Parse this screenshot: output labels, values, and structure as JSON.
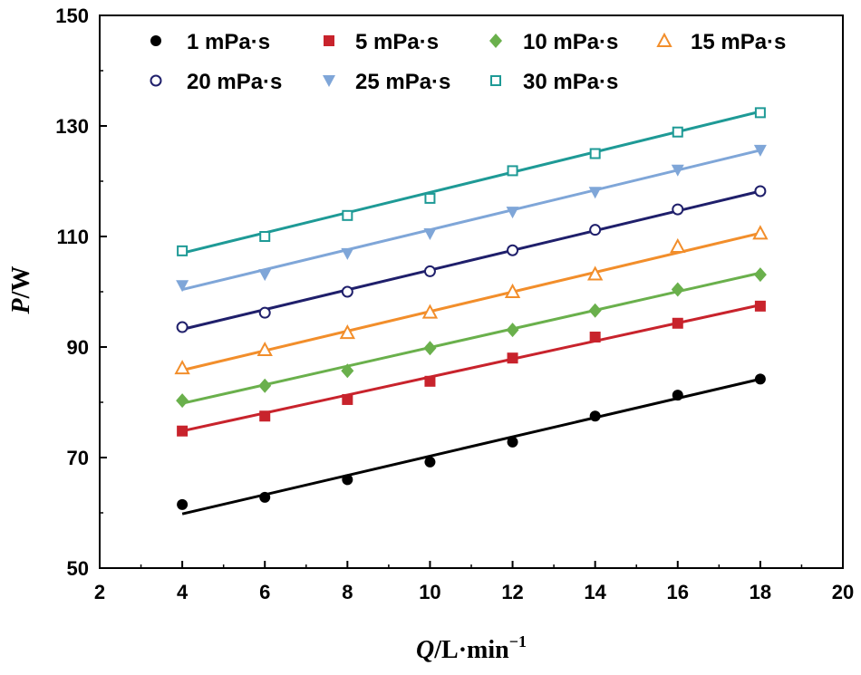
{
  "chart_data": {
    "type": "scatter",
    "title": "",
    "xlabel": {
      "var": "Q",
      "unit": "/L·min",
      "sup": "−1"
    },
    "ylabel": {
      "var": "P",
      "unit": "/W"
    },
    "xlim": [
      2,
      20
    ],
    "ylim": [
      50,
      150
    ],
    "xticks": [
      2,
      4,
      6,
      8,
      10,
      12,
      14,
      16,
      18,
      20
    ],
    "yticks": [
      50,
      70,
      90,
      110,
      130,
      150
    ],
    "x": [
      4,
      6,
      8,
      10,
      12,
      14,
      16,
      18
    ],
    "legend_position": "top",
    "series": [
      {
        "name": "1 mPa·s",
        "marker": "circle-filled",
        "color": "#000000",
        "values": [
          61.5,
          62.8,
          66.0,
          69.2,
          72.8,
          77.5,
          81.3,
          84.2
        ],
        "fit": [
          59.8,
          84.2
        ]
      },
      {
        "name": "5 mPa·s",
        "marker": "square-filled",
        "color": "#c8232c",
        "values": [
          74.8,
          77.5,
          80.5,
          83.8,
          88.0,
          91.8,
          94.3,
          97.4
        ],
        "fit": [
          74.8,
          97.6
        ]
      },
      {
        "name": "10 mPa·s",
        "marker": "diamond-filled",
        "color": "#6ab04c",
        "values": [
          80.3,
          83.0,
          85.7,
          89.8,
          93.1,
          96.6,
          100.4,
          103.1
        ],
        "fit": [
          79.8,
          103.4
        ]
      },
      {
        "name": "15 mPa·s",
        "marker": "triangle-up-open",
        "color": "#f28e2b",
        "values": [
          86.2,
          89.5,
          92.6,
          96.3,
          100.0,
          103.2,
          108.2,
          110.6
        ],
        "fit": [
          85.8,
          110.6
        ]
      },
      {
        "name": "20 mPa·s",
        "marker": "circle-open",
        "color": "#1f1f6b",
        "values": [
          93.6,
          96.2,
          100.0,
          103.7,
          107.5,
          111.2,
          114.9,
          118.2
        ],
        "fit": [
          93.2,
          118.2
        ]
      },
      {
        "name": "25 mPa·s",
        "marker": "triangle-down-filled",
        "color": "#7fa6d8",
        "values": [
          101.1,
          103.1,
          106.9,
          110.5,
          114.4,
          118.0,
          122.0,
          125.6
        ],
        "fit": [
          100.4,
          125.6
        ]
      },
      {
        "name": "30 mPa·s",
        "marker": "square-open",
        "color": "#1e9a96",
        "values": [
          107.4,
          110.0,
          113.8,
          116.9,
          121.9,
          125.0,
          128.9,
          132.4
        ],
        "fit": [
          107.0,
          132.6
        ]
      }
    ]
  }
}
